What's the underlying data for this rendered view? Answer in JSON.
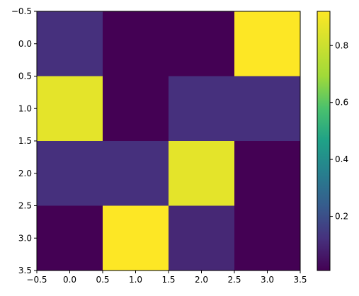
{
  "chart_data": {
    "type": "heatmap",
    "title": "",
    "xlabel": "",
    "ylabel": "",
    "x_ticks": [
      "-0.5",
      "0.0",
      "0.5",
      "1.0",
      "1.5",
      "2.0",
      "2.5",
      "3.0",
      "3.5"
    ],
    "y_ticks": [
      "-0.5",
      "0.0",
      "0.5",
      "1.0",
      "1.5",
      "2.0",
      "2.5",
      "3.0",
      "3.5"
    ],
    "xlim": [
      -0.5,
      3.5
    ],
    "ylim": [
      3.5,
      -0.5
    ],
    "values": [
      [
        0.12,
        0.01,
        0.01,
        0.92
      ],
      [
        0.86,
        0.01,
        0.12,
        0.12
      ],
      [
        0.12,
        0.12,
        0.86,
        0.01
      ],
      [
        0.01,
        0.92,
        0.1,
        0.01
      ]
    ],
    "colormap": "viridis",
    "colorbar": {
      "range": [
        0.01,
        0.92
      ],
      "ticks": [
        0.2,
        0.4,
        0.6,
        0.8
      ],
      "tick_labels": [
        "0.2",
        "0.4",
        "0.6",
        "0.8"
      ]
    },
    "grid": false,
    "legend": "none"
  }
}
